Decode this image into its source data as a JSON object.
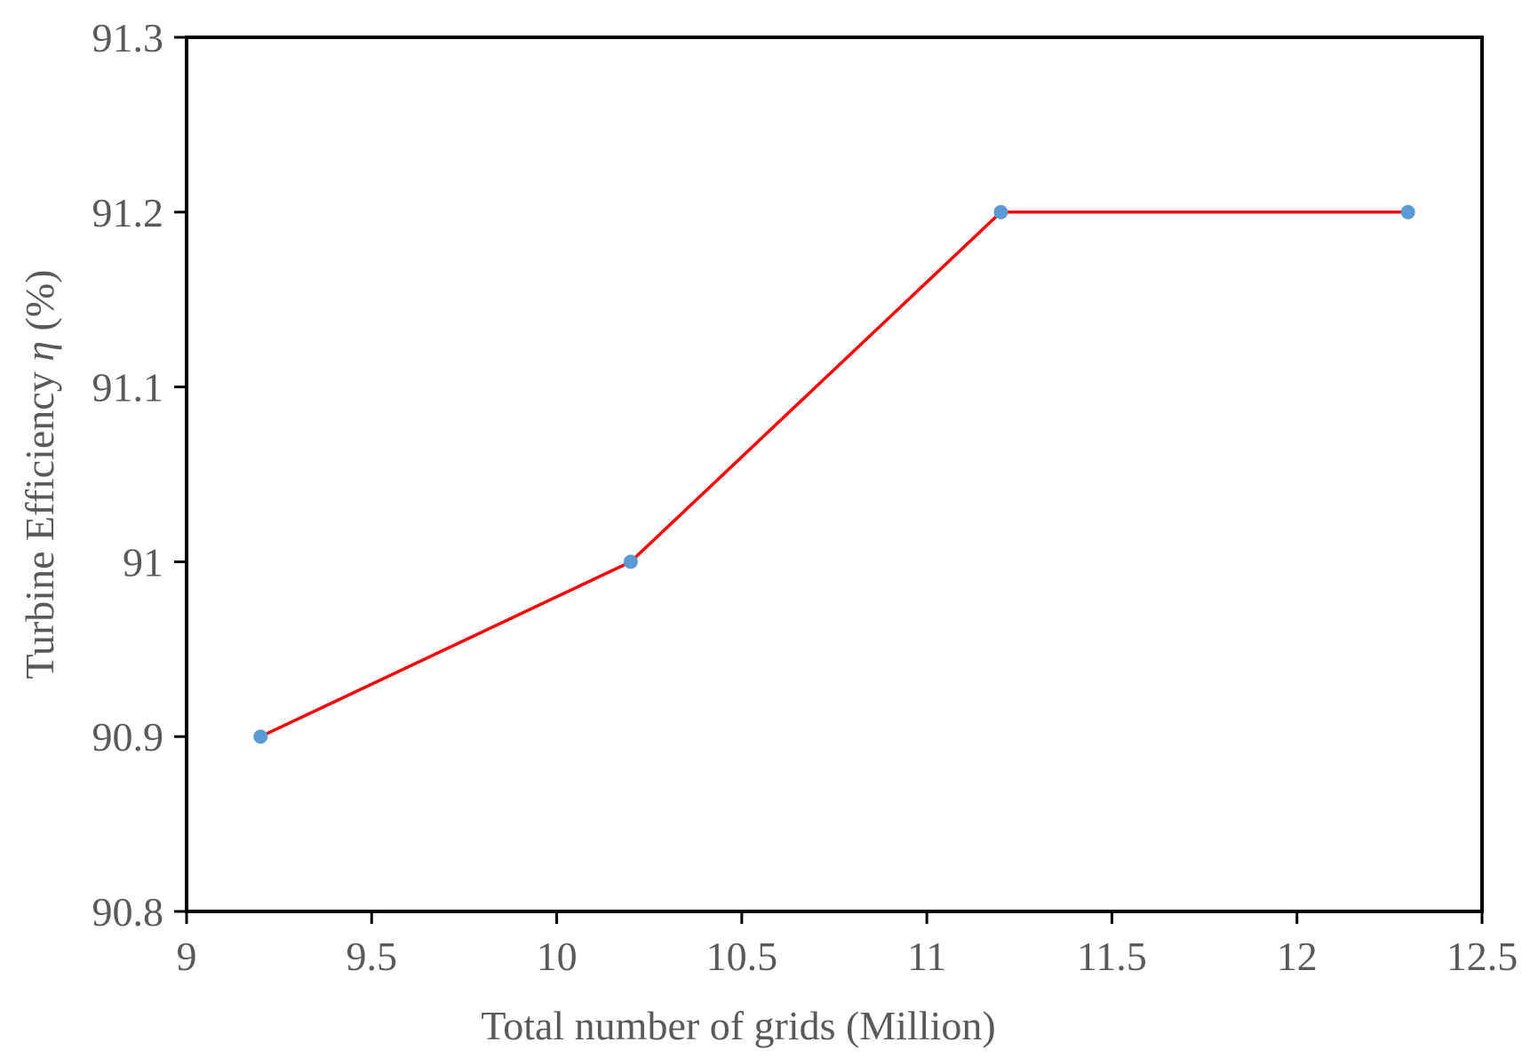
{
  "chart_data": {
    "type": "line",
    "title": "",
    "xlabel": "Total number of grids (Million)",
    "ylabel_parts": {
      "prefix": "Turbine Efficiency ",
      "symbol": "η",
      "suffix": " (%)"
    },
    "xlim": [
      9,
      12.5
    ],
    "ylim": [
      90.8,
      91.3
    ],
    "xticks": [
      "9",
      "9.5",
      "10",
      "10.5",
      "11",
      "11.5",
      "12",
      "12.5"
    ],
    "yticks": [
      "90.8",
      "90.9",
      "91",
      "91.1",
      "91.2",
      "91.3"
    ],
    "grid": false,
    "series": [
      {
        "x": [
          9.2,
          10.2,
          11.2,
          12.3
        ],
        "y": [
          90.9,
          91.0,
          91.2,
          91.2
        ],
        "line_color": "#ff0000",
        "marker_color": "#5b9bd5"
      }
    ]
  }
}
